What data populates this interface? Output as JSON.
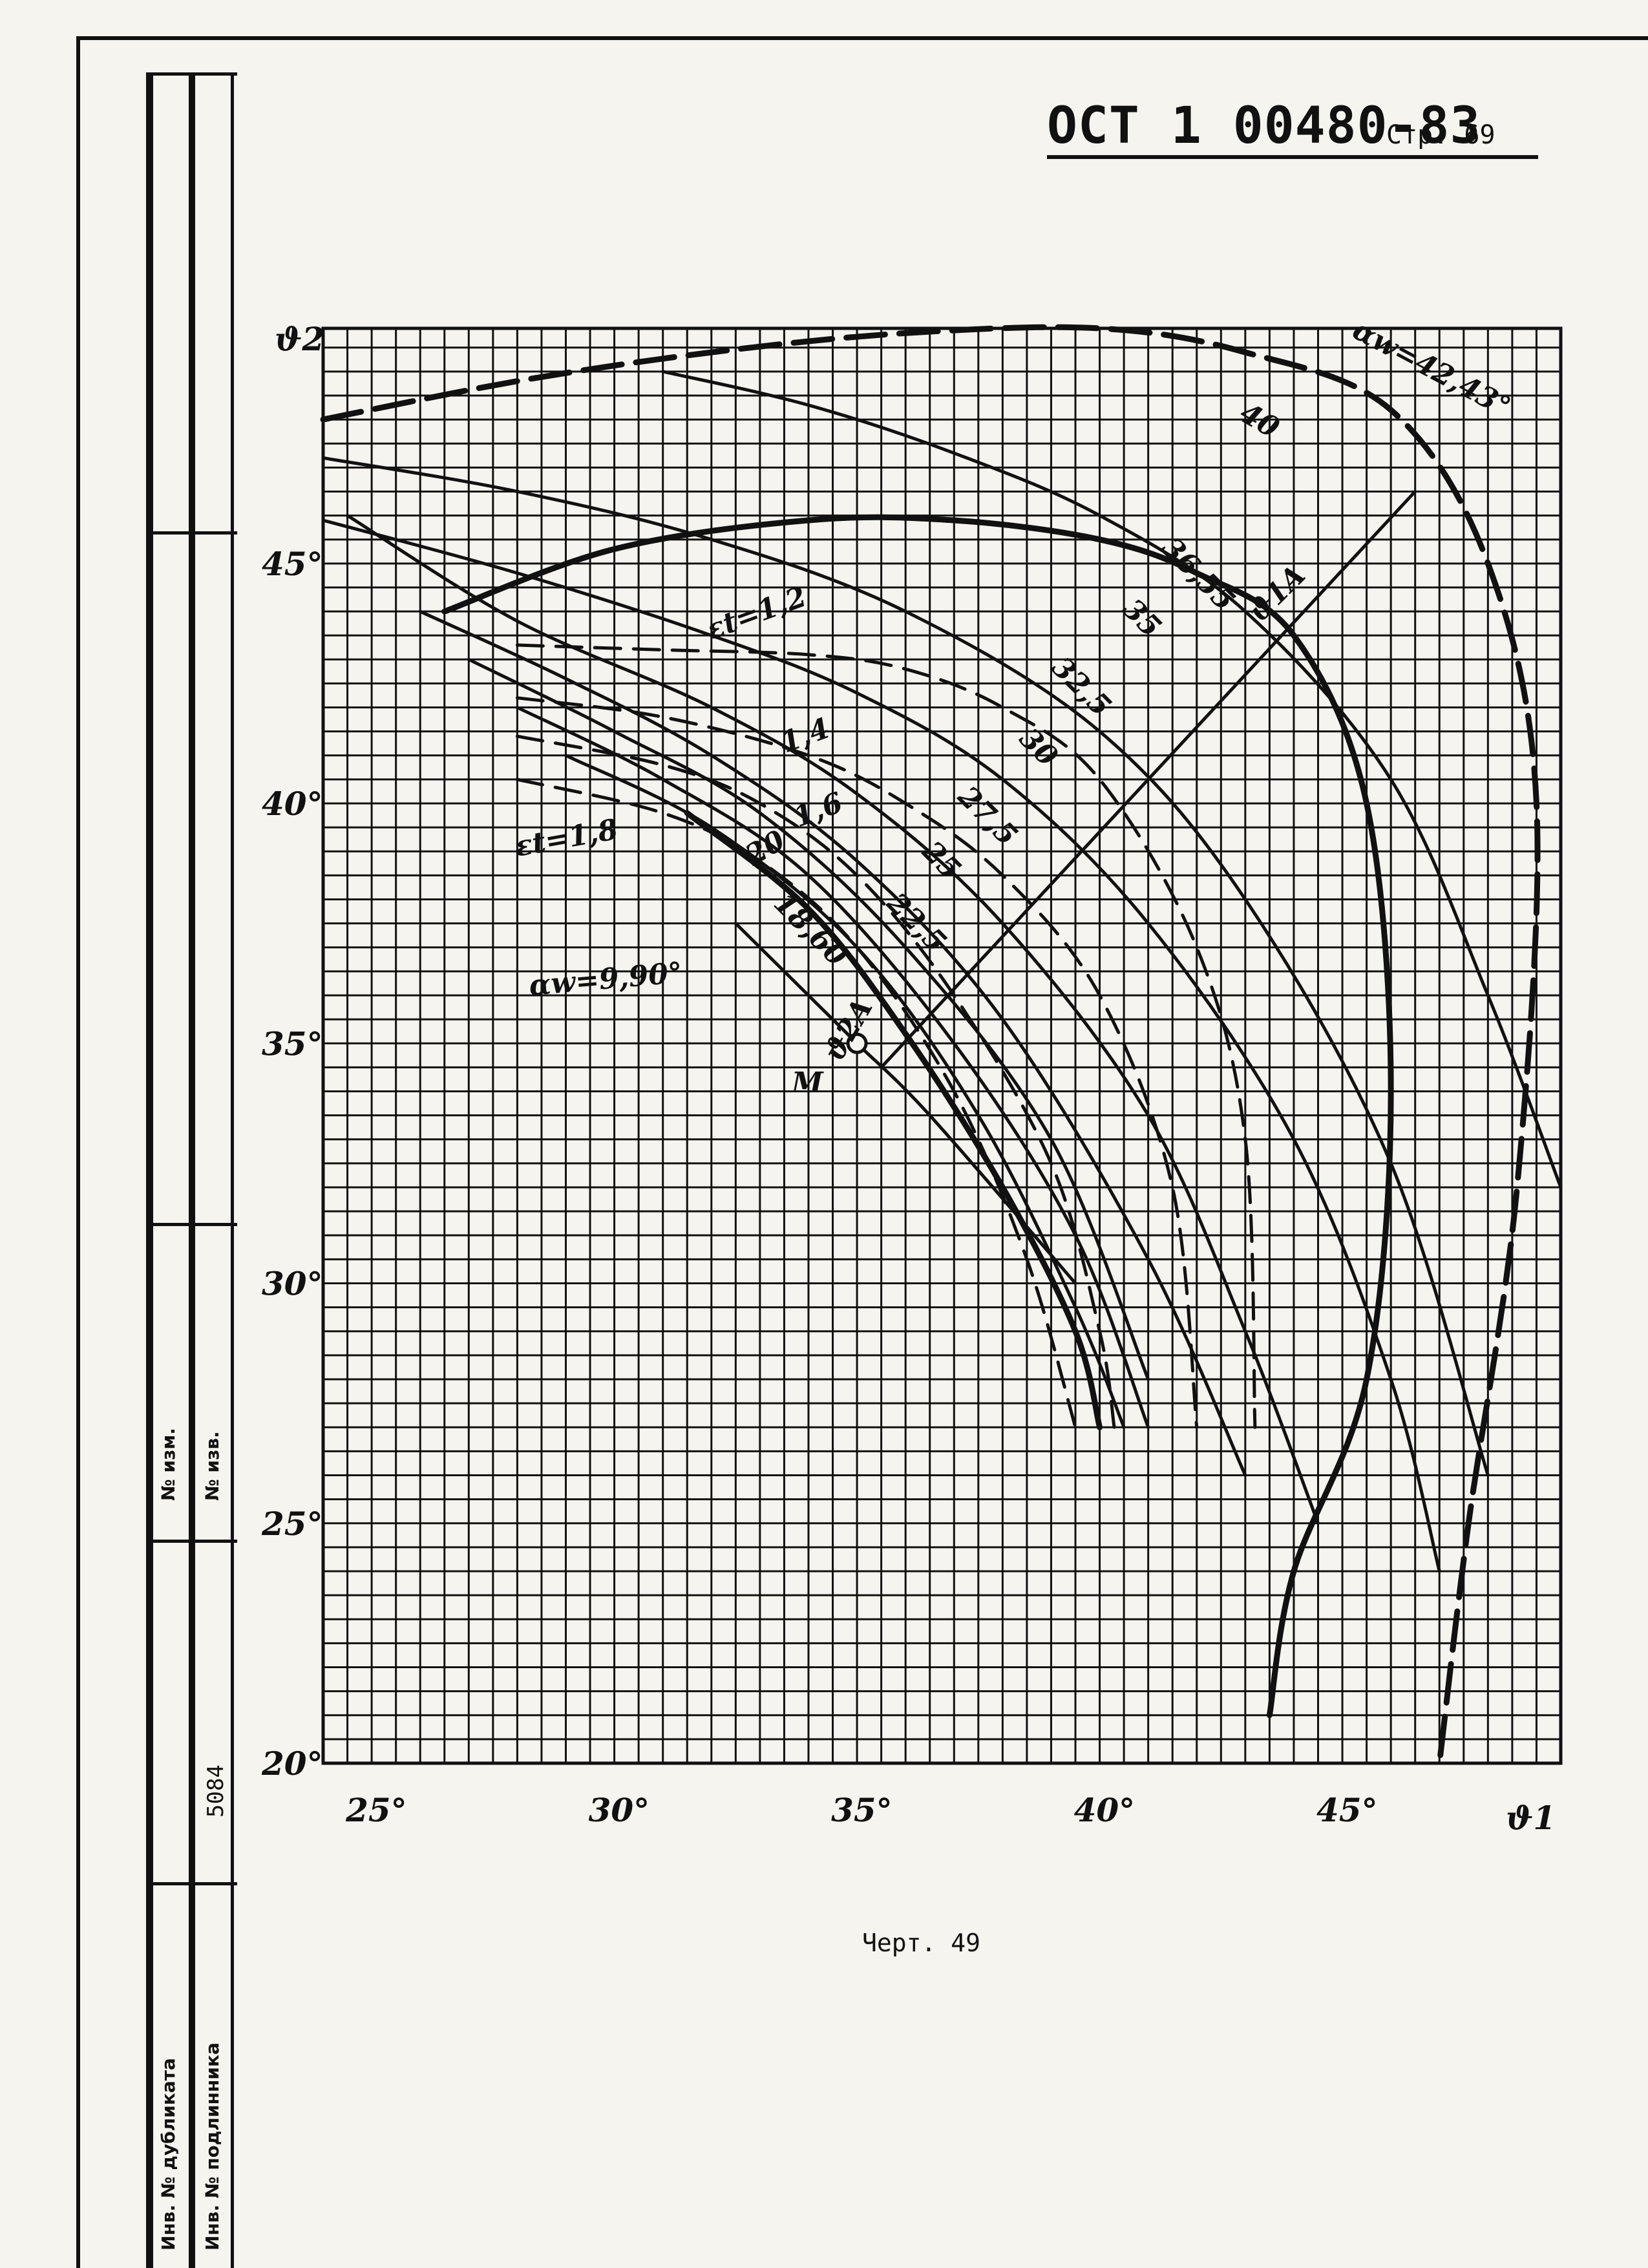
{
  "header": {
    "doc_code": "ОСТ 1 00480-83",
    "page_label": "Стр. 69"
  },
  "sidebar": {
    "inv_change_no": "№ изм.",
    "inv_doc_no": "№ изв.",
    "inv_number": "5084",
    "inv_duplicate": "Инв. № дубликата",
    "inv_original": "Инв. № подлинника"
  },
  "caption": "Черт. 49",
  "chart_data": {
    "type": "line",
    "xlabel": "ϑ1",
    "ylabel": "ϑ2",
    "xlim": [
      24,
      49.5
    ],
    "ylim": [
      20,
      49.9
    ],
    "grid": true,
    "x_ticks": [
      25,
      30,
      35,
      40,
      45
    ],
    "x_tick_labels": [
      "25°",
      "30°",
      "35°",
      "40°",
      "45°"
    ],
    "y_ticks": [
      20,
      25,
      30,
      35,
      40,
      45
    ],
    "y_tick_labels": [
      "20°",
      "25°",
      "30°",
      "35°",
      "40°",
      "45°"
    ],
    "series": [
      {
        "name": "αw=42,43°",
        "style": "bold-dashed",
        "points": [
          [
            24,
            48
          ],
          [
            28,
            48.8
          ],
          [
            32,
            49.4
          ],
          [
            36,
            49.8
          ],
          [
            40,
            49.9
          ],
          [
            43,
            49.4
          ],
          [
            46,
            48.2
          ],
          [
            48,
            45
          ],
          [
            49,
            40
          ],
          [
            48.6,
            32
          ],
          [
            47.6,
            25
          ],
          [
            47,
            20
          ]
        ]
      },
      {
        "name": "40",
        "style": "solid",
        "points": [
          [
            31,
            49
          ],
          [
            34,
            48.3
          ],
          [
            37,
            47.3
          ],
          [
            40,
            46
          ],
          [
            43,
            44
          ],
          [
            46,
            40.5
          ],
          [
            48,
            36
          ],
          [
            49.5,
            32
          ]
        ]
      },
      {
        "name": "36,55",
        "style": "bold",
        "points": [
          [
            26.5,
            44
          ],
          [
            30,
            45.3
          ],
          [
            34,
            45.9
          ],
          [
            37,
            45.9
          ],
          [
            40,
            45.5
          ],
          [
            42,
            44.8
          ],
          [
            44,
            43.5
          ],
          [
            45.5,
            40
          ],
          [
            46,
            34
          ],
          [
            45.5,
            28
          ],
          [
            44,
            24
          ],
          [
            43.5,
            21
          ]
        ]
      },
      {
        "name": "35",
        "style": "solid",
        "points": [
          [
            24,
            47.2
          ],
          [
            28,
            46.5
          ],
          [
            32,
            45.5
          ],
          [
            36,
            44
          ],
          [
            40,
            41.5
          ],
          [
            43,
            38
          ],
          [
            46,
            32.5
          ],
          [
            48,
            26
          ]
        ]
      },
      {
        "name": "32,5",
        "style": "solid",
        "points": [
          [
            24,
            45.9
          ],
          [
            28,
            44.8
          ],
          [
            32,
            43.5
          ],
          [
            35,
            42.3
          ],
          [
            38,
            40.5
          ],
          [
            41,
            37.5
          ],
          [
            44,
            33
          ],
          [
            46,
            28
          ],
          [
            47,
            24
          ]
        ]
      },
      {
        "name": "30",
        "style": "solid",
        "points": [
          [
            24.5,
            46
          ],
          [
            28,
            43.8
          ],
          [
            32,
            42
          ],
          [
            35,
            40.2
          ],
          [
            38,
            37.5
          ],
          [
            41,
            33.5
          ],
          [
            43,
            29
          ],
          [
            44.5,
            25
          ]
        ]
      },
      {
        "name": "27,5",
        "style": "solid",
        "points": [
          [
            26,
            44
          ],
          [
            29,
            42.6
          ],
          [
            32,
            41
          ],
          [
            35,
            38.8
          ],
          [
            38,
            35.5
          ],
          [
            41,
            30.5
          ],
          [
            43,
            26
          ]
        ]
      },
      {
        "name": "25",
        "style": "solid",
        "points": [
          [
            27,
            43
          ],
          [
            30,
            41.5
          ],
          [
            33,
            39.8
          ],
          [
            36,
            37
          ],
          [
            39,
            33
          ],
          [
            41,
            28
          ]
        ]
      },
      {
        "name": "22,5",
        "style": "solid",
        "points": [
          [
            28,
            42
          ],
          [
            31,
            40.5
          ],
          [
            34,
            38.5
          ],
          [
            37,
            35
          ],
          [
            39.5,
            31
          ],
          [
            41,
            27
          ]
        ]
      },
      {
        "name": "20",
        "style": "solid",
        "points": [
          [
            29,
            41
          ],
          [
            32,
            39.5
          ],
          [
            35,
            37
          ],
          [
            37.5,
            33.5
          ],
          [
            39.5,
            29.5
          ],
          [
            40.5,
            27
          ]
        ]
      },
      {
        "name": "18,60",
        "style": "bold",
        "points": [
          [
            31.5,
            39.8
          ],
          [
            34,
            37.8
          ],
          [
            36,
            35.2
          ],
          [
            38,
            32
          ],
          [
            39.5,
            29
          ],
          [
            40,
            27
          ]
        ]
      },
      {
        "name": "ε=1,2",
        "style": "dashed",
        "points": [
          [
            28,
            43.3
          ],
          [
            31,
            43.2
          ],
          [
            34,
            43.1
          ],
          [
            36,
            42.8
          ],
          [
            38,
            42
          ],
          [
            40,
            40.5
          ],
          [
            42,
            37
          ],
          [
            43,
            33
          ],
          [
            43.2,
            27
          ]
        ]
      },
      {
        "name": "1,4",
        "style": "dashed",
        "points": [
          [
            28,
            42.2
          ],
          [
            31,
            41.8
          ],
          [
            34,
            41
          ],
          [
            36,
            40
          ],
          [
            38,
            38.5
          ],
          [
            40,
            36
          ],
          [
            41.5,
            32
          ],
          [
            42,
            27
          ]
        ]
      },
      {
        "name": "1,6",
        "style": "dashed",
        "points": [
          [
            28,
            41.4
          ],
          [
            31,
            40.8
          ],
          [
            33,
            40
          ],
          [
            35,
            38.5
          ],
          [
            37,
            36
          ],
          [
            39,
            32.5
          ],
          [
            40,
            29
          ],
          [
            40.3,
            27
          ]
        ]
      },
      {
        "name": "ε=1,8",
        "style": "dashed",
        "points": [
          [
            28,
            40.5
          ],
          [
            31,
            39.8
          ],
          [
            33,
            38.8
          ],
          [
            35,
            37
          ],
          [
            37,
            34
          ],
          [
            38.5,
            30.5
          ],
          [
            39.5,
            27
          ]
        ]
      },
      {
        "name": "αw=9,90°",
        "style": "solid",
        "points": [
          [
            32.5,
            37.5
          ],
          [
            34,
            36
          ],
          [
            35,
            35
          ],
          [
            36.5,
            33.5
          ],
          [
            39.5,
            30
          ]
        ]
      },
      {
        "name": "ϑ1A",
        "style": "solid",
        "points": [
          [
            35.5,
            34.5
          ],
          [
            46.5,
            46.5
          ]
        ]
      }
    ],
    "annotations": [
      "αw=42,43°",
      "40",
      "36,55",
      "35",
      "32,5",
      "30",
      "27,5",
      "25",
      "22,5",
      "20",
      "18,60",
      "εt=1,2",
      "1,4",
      "1,6",
      "εt=1,8",
      "αw=9,90°",
      "ϑ1A",
      "ϑ2A",
      "M"
    ],
    "point_M": [
      35,
      35
    ]
  }
}
